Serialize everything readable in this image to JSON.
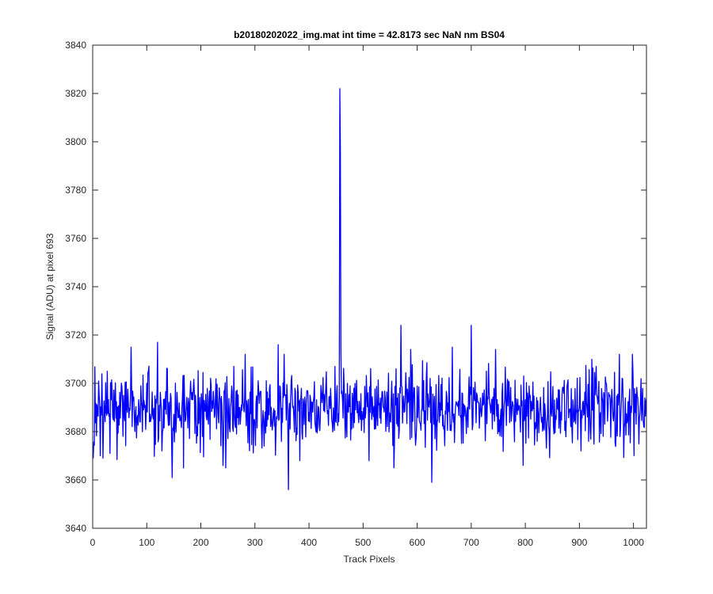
{
  "chart_data": {
    "type": "line",
    "title": "b20180202022_img.mat int time = 42.8173 sec  NaN nm BS04",
    "xlabel": "Track Pixels",
    "ylabel": "Signal (ADU) at pixel 693",
    "xlim": [
      0,
      1024
    ],
    "ylim": [
      3640,
      3840
    ],
    "xticks": [
      0,
      100,
      200,
      300,
      400,
      500,
      600,
      700,
      800,
      900,
      1000
    ],
    "yticks": [
      3640,
      3660,
      3680,
      3700,
      3720,
      3740,
      3760,
      3780,
      3800,
      3820,
      3840
    ],
    "grid": false,
    "series": [
      {
        "color": "#0000ff",
        "x_start": 1,
        "x_step": 1,
        "baseline": 3690,
        "noise_std": 8,
        "features": [
          {
            "x": 1,
            "y": 3669
          },
          {
            "x": 14,
            "y": 3670
          },
          {
            "x": 19,
            "y": 3669
          },
          {
            "x": 27,
            "y": 3705
          },
          {
            "x": 32,
            "y": 3671
          },
          {
            "x": 71,
            "y": 3715
          },
          {
            "x": 120,
            "y": 3717
          },
          {
            "x": 147,
            "y": 3661
          },
          {
            "x": 168,
            "y": 3665
          },
          {
            "x": 246,
            "y": 3665
          },
          {
            "x": 343,
            "y": 3716
          },
          {
            "x": 362,
            "y": 3656
          },
          {
            "x": 383,
            "y": 3668
          },
          {
            "x": 448,
            "y": 3707
          },
          {
            "x": 457,
            "y": 3822
          },
          {
            "x": 458,
            "y": 3797
          },
          {
            "x": 459,
            "y": 3713
          },
          {
            "x": 511,
            "y": 3668
          },
          {
            "x": 557,
            "y": 3665
          },
          {
            "x": 570,
            "y": 3724
          },
          {
            "x": 588,
            "y": 3714
          },
          {
            "x": 627,
            "y": 3659
          },
          {
            "x": 665,
            "y": 3715
          },
          {
            "x": 700,
            "y": 3724
          },
          {
            "x": 745,
            "y": 3714
          },
          {
            "x": 796,
            "y": 3666
          },
          {
            "x": 1021,
            "y": 3694
          }
        ]
      }
    ]
  }
}
